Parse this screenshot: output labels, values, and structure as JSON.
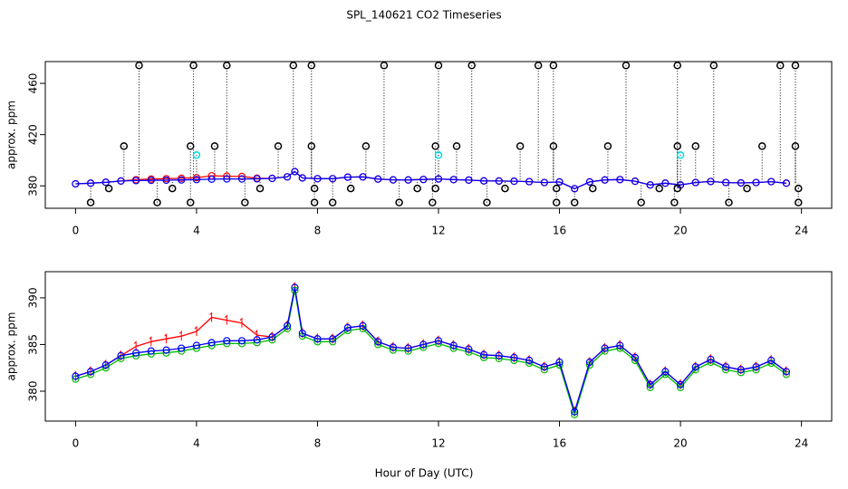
{
  "chart_data": [
    {
      "type": "line",
      "title": "SPL_140621  CO2 Timeseries",
      "y_label": "approx. ppm",
      "x": [
        0,
        0.5,
        1,
        1.5,
        2,
        2.5,
        3,
        3.5,
        4,
        4.5,
        5,
        5.5,
        6,
        6.5,
        7,
        7.25,
        7.5,
        8,
        8.5,
        9,
        9.5,
        10,
        10.5,
        11,
        11.5,
        12,
        12.5,
        13,
        13.5,
        14,
        14.5,
        15,
        15.5,
        16,
        16.5,
        17,
        17.5,
        18,
        18.5,
        19,
        19.5,
        20,
        20.5,
        21,
        21.5,
        22,
        22.5,
        23,
        23.5
      ],
      "xlim": [
        -1,
        25
      ],
      "xticks": [
        0,
        4,
        8,
        12,
        16,
        20,
        24
      ],
      "ylim": [
        362.5,
        477
      ],
      "yticks": [
        380,
        420,
        460
      ],
      "series": [
        {
          "color": "#ff0000",
          "values": [
            381.6,
            382.1,
            382.8,
            383.8,
            384.8,
            385.3,
            385.6,
            385.9,
            386.4,
            387.9,
            387.6,
            387.3,
            386.0,
            385.8,
            387.0,
            391.1,
            386.2,
            385.6,
            385.6,
            386.8,
            387.0,
            385.3,
            384.7,
            384.6,
            385.0,
            385.4,
            384.9,
            384.5,
            383.9,
            383.8,
            383.6,
            383.3,
            382.6,
            383.1,
            377.8,
            383.1,
            384.6,
            384.9,
            383.6,
            380.7,
            382.1,
            380.7,
            382.6,
            383.4,
            382.6,
            382.3,
            382.6,
            383.3,
            382.1
          ]
        },
        {
          "color": "#0000ff",
          "values": [
            381.6,
            382.1,
            382.8,
            383.8,
            384.1,
            384.3,
            384.4,
            384.6,
            384.9,
            385.2,
            385.4,
            385.4,
            385.5,
            385.8,
            387.0,
            391.1,
            386.2,
            385.6,
            385.6,
            386.8,
            387.0,
            385.3,
            384.7,
            384.6,
            385.0,
            385.4,
            384.9,
            384.5,
            383.9,
            383.8,
            383.6,
            383.3,
            382.6,
            383.1,
            377.8,
            383.1,
            384.6,
            384.9,
            383.6,
            380.7,
            382.1,
            380.7,
            382.6,
            383.4,
            382.6,
            382.3,
            382.6,
            383.3,
            382.1
          ]
        }
      ],
      "points": [
        {
          "color": "#000000",
          "x": [
            0.5,
            1.1,
            1.6,
            2.1,
            2.7,
            3.2,
            3.8,
            3.8,
            3.9,
            4.6,
            5.0,
            5.6,
            6.1,
            6.7,
            7.2,
            7.8,
            7.8,
            7.9,
            7.9,
            8.5,
            9.1,
            9.6,
            10.2,
            10.7,
            11.3,
            11.8,
            11.9,
            11.9,
            12.0,
            12.6,
            13.1,
            13.6,
            14.2,
            14.7,
            15.3,
            15.8,
            15.8,
            15.9,
            15.9,
            16.5,
            17.1,
            17.6,
            18.2,
            18.7,
            19.3,
            19.8,
            19.9,
            19.9,
            19.9,
            20.5,
            21.1,
            21.6,
            22.2,
            22.7,
            23.3,
            23.8,
            23.8,
            23.9,
            23.9
          ],
          "values": [
            367,
            378,
            411,
            474,
            367,
            378,
            367,
            411,
            474,
            411,
            474,
            367,
            378,
            411,
            474,
            474,
            411,
            378,
            367,
            367,
            378,
            411,
            474,
            367,
            378,
            367,
            378,
            411,
            474,
            411,
            474,
            367,
            378,
            411,
            474,
            474,
            411,
            378,
            367,
            367,
            378,
            411,
            474,
            367,
            378,
            367,
            378,
            411,
            474,
            411,
            474,
            367,
            378,
            411,
            474,
            474,
            411,
            378,
            367
          ]
        },
        {
          "color": "#00dddd",
          "x": [
            4.0,
            12.0,
            20.0
          ],
          "values": [
            404,
            404,
            404
          ]
        }
      ]
    },
    {
      "type": "line",
      "y_label": "approx. ppm",
      "x_label": "Hour of Day (UTC)",
      "x": [
        0,
        0.5,
        1,
        1.5,
        2,
        2.5,
        3,
        3.5,
        4,
        4.5,
        5,
        5.5,
        6,
        6.5,
        7,
        7.25,
        7.5,
        8,
        8.5,
        9,
        9.5,
        10,
        10.5,
        11,
        11.5,
        12,
        12.5,
        13,
        13.5,
        14,
        14.5,
        15,
        15.5,
        16,
        16.5,
        17,
        17.5,
        18,
        18.5,
        19,
        19.5,
        20,
        20.5,
        21,
        21.5,
        22,
        22.5,
        23,
        23.5
      ],
      "xlim": [
        -1,
        25
      ],
      "xticks": [
        0,
        4,
        8,
        12,
        16,
        20,
        24
      ],
      "ylim": [
        376.8,
        392.8
      ],
      "yticks": [
        380,
        385,
        390
      ],
      "series": [
        {
          "color": "#ff0000",
          "values": [
            381.6,
            382.1,
            382.8,
            383.8,
            384.8,
            385.3,
            385.6,
            385.9,
            386.4,
            387.9,
            387.6,
            387.3,
            386.0,
            385.8,
            387.0,
            391.1,
            386.2,
            385.6,
            385.6,
            386.8,
            387.0,
            385.3,
            384.7,
            384.6,
            385.0,
            385.4,
            384.9,
            384.5,
            383.9,
            383.8,
            383.6,
            383.3,
            382.6,
            383.1,
            377.8,
            383.1,
            384.6,
            384.9,
            383.6,
            380.7,
            382.1,
            380.7,
            382.6,
            383.4,
            382.6,
            382.3,
            382.6,
            383.3,
            382.1
          ]
        },
        {
          "color": "#00bb00",
          "values": [
            381.3,
            381.8,
            382.5,
            383.5,
            383.8,
            384.0,
            384.1,
            384.3,
            384.6,
            384.9,
            385.1,
            385.1,
            385.2,
            385.5,
            386.7,
            390.8,
            385.9,
            385.3,
            385.3,
            386.5,
            386.7,
            385.0,
            384.4,
            384.3,
            384.7,
            385.1,
            384.6,
            384.2,
            383.6,
            383.5,
            383.3,
            383.0,
            382.3,
            382.8,
            377.5,
            382.8,
            384.3,
            384.6,
            383.3,
            380.4,
            381.8,
            380.4,
            382.3,
            383.1,
            382.3,
            382.0,
            382.3,
            383.0,
            381.8
          ]
        },
        {
          "color": "#0000ff",
          "values": [
            381.6,
            382.1,
            382.8,
            383.8,
            384.1,
            384.3,
            384.4,
            384.6,
            384.9,
            385.2,
            385.4,
            385.4,
            385.5,
            385.8,
            387.0,
            391.1,
            386.2,
            385.6,
            385.6,
            386.8,
            387.0,
            385.3,
            384.7,
            384.6,
            385.0,
            385.4,
            384.9,
            384.5,
            383.9,
            383.8,
            383.6,
            383.3,
            382.6,
            383.1,
            377.8,
            383.1,
            384.6,
            384.9,
            383.6,
            380.7,
            382.1,
            380.7,
            382.6,
            383.4,
            382.6,
            382.3,
            382.6,
            383.3,
            382.1
          ]
        }
      ]
    }
  ]
}
